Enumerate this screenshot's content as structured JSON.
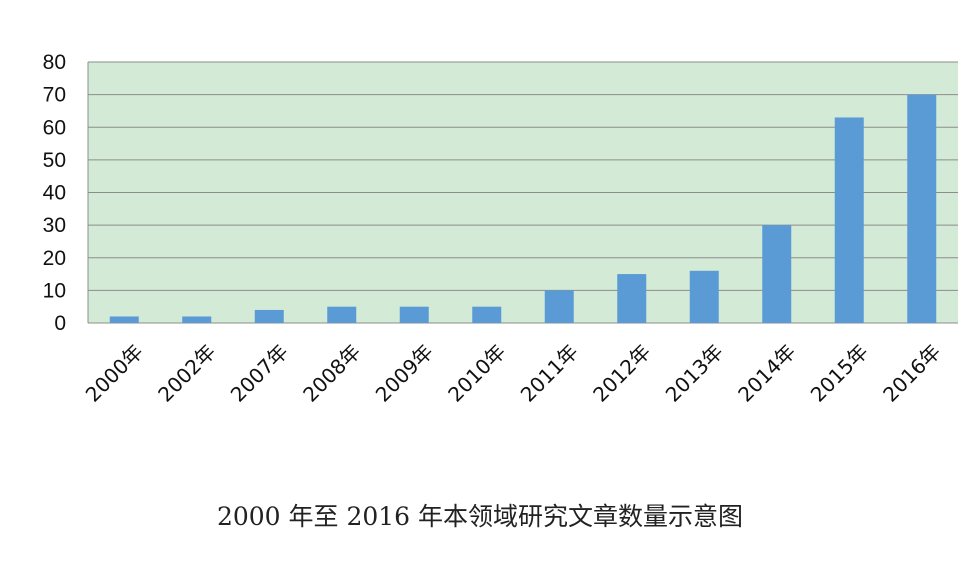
{
  "chart_data": {
    "type": "bar",
    "title": "2000 年至 2016 年本领域研究文章数量示意图",
    "categories": [
      "2000年",
      "2002年",
      "2007年",
      "2008年",
      "2009年",
      "2010年",
      "2011年",
      "2012年",
      "2013年",
      "2014年",
      "2015年",
      "2016年"
    ],
    "values": [
      2,
      2,
      4,
      5,
      5,
      5,
      10,
      15,
      16,
      30,
      63,
      70
    ],
    "ylim": [
      0,
      80
    ],
    "yticks": [
      0,
      10,
      20,
      30,
      40,
      50,
      60,
      70,
      80
    ],
    "grid": true,
    "colors": {
      "bar": "#5b9bd5",
      "plot_bg": "#d3ead6",
      "grid": "#8c8c8c"
    }
  }
}
